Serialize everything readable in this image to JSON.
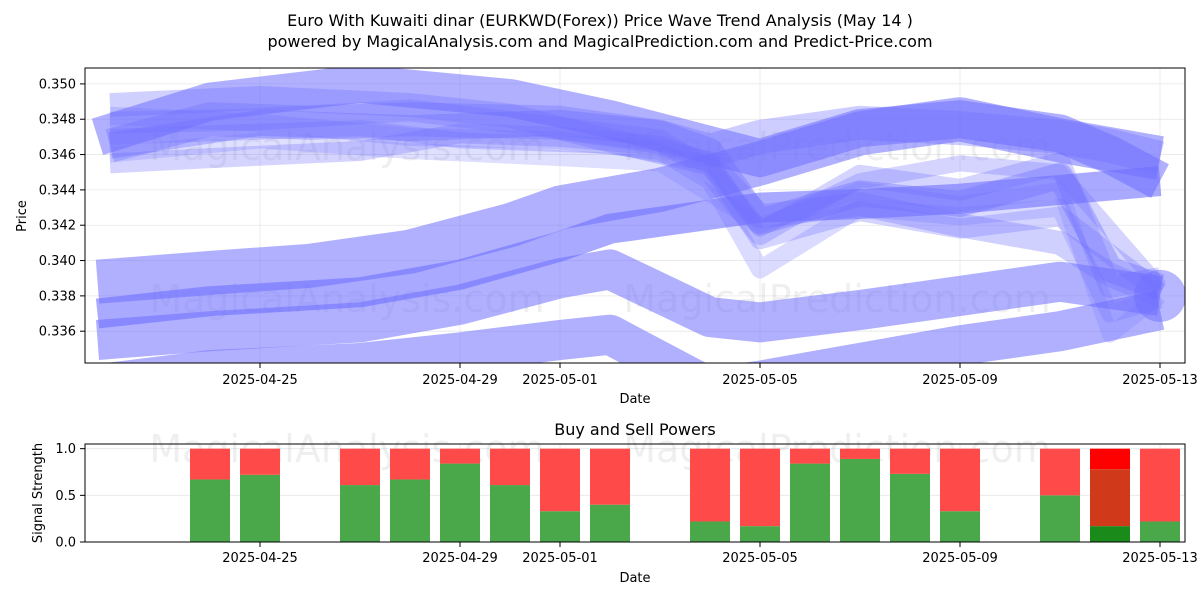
{
  "figure": {
    "title_line1": "Euro With Kuwaiti dinar (EURKWD(Forex)) Price Wave Trend Analysis (May 14 )",
    "title_line2": "powered by MagicalAnalysis.com and MagicalPrediction.com and Predict-Price.com",
    "watermarks": [
      "MagicalAnalysis.com",
      "MagicalPrediction.com"
    ]
  },
  "chart_data": [
    {
      "type": "line",
      "title": "",
      "xlabel": "Date",
      "ylabel": "Price",
      "grid": true,
      "xlim": [
        "2025-04-21T12:00",
        "2025-05-13T12:00"
      ],
      "ylim": [
        0.3342,
        0.3509
      ],
      "x_ticks": [
        "2025-04-25",
        "2025-04-29",
        "2025-05-01",
        "2025-05-05",
        "2025-05-09",
        "2025-05-13"
      ],
      "y_ticks": [
        0.336,
        0.338,
        0.34,
        0.342,
        0.344,
        0.346,
        0.348,
        0.35
      ],
      "band_color": "#6f6fff",
      "series": [
        {
          "x": [
            "2025-04-22",
            "2025-04-25",
            "2025-04-28",
            "2025-05-01",
            "2025-05-03",
            "2025-05-04",
            "2025-05-05",
            "2025-05-07",
            "2025-05-09",
            "2025-05-11",
            "2025-05-12",
            "2025-05-13"
          ],
          "y": [
            0.3465,
            0.3478,
            0.3475,
            0.3478,
            0.3472,
            0.3462,
            0.3422,
            0.3438,
            0.3432,
            0.3448,
            0.3395,
            0.3385
          ],
          "w": 26,
          "a": 0.38
        },
        {
          "x": [
            "2025-04-22",
            "2025-04-25",
            "2025-04-28",
            "2025-04-30",
            "2025-05-02",
            "2025-05-04",
            "2025-05-05",
            "2025-05-07",
            "2025-05-09",
            "2025-05-11",
            "2025-05-12",
            "2025-05-13"
          ],
          "y": [
            0.3488,
            0.3492,
            0.3488,
            0.3482,
            0.3468,
            0.3455,
            0.3425,
            0.3432,
            0.342,
            0.341,
            0.3392,
            0.338
          ],
          "w": 24,
          "a": 0.33
        },
        {
          "x": [
            "2025-04-22",
            "2025-04-25",
            "2025-04-28",
            "2025-05-01",
            "2025-05-03",
            "2025-05-04",
            "2025-05-05",
            "2025-05-07",
            "2025-05-09",
            "2025-05-11",
            "2025-05-12",
            "2025-05-13"
          ],
          "y": [
            0.3478,
            0.348,
            0.3485,
            0.3475,
            0.3468,
            0.345,
            0.3415,
            0.3448,
            0.344,
            0.3455,
            0.3385,
            0.339
          ],
          "w": 22,
          "a": 0.3
        },
        {
          "x": [
            "2025-04-22",
            "2025-04-24",
            "2025-04-27",
            "2025-04-29",
            "2025-05-01",
            "2025-05-03",
            "2025-05-04",
            "2025-05-05",
            "2025-05-07",
            "2025-05-09",
            "2025-05-11",
            "2025-05-13"
          ],
          "y": [
            0.3455,
            0.3458,
            0.3462,
            0.3472,
            0.347,
            0.3465,
            0.3455,
            0.3412,
            0.3428,
            0.3418,
            0.3425,
            0.3382
          ],
          "w": 20,
          "a": 0.3
        },
        {
          "x": [
            "2025-04-22",
            "2025-04-25",
            "2025-04-28",
            "2025-05-01",
            "2025-05-03",
            "2025-05-04",
            "2025-05-05",
            "2025-05-07",
            "2025-05-09",
            "2025-05-11",
            "2025-05-12",
            "2025-05-13"
          ],
          "y": [
            0.3482,
            0.3478,
            0.347,
            0.3468,
            0.3462,
            0.3445,
            0.3395,
            0.343,
            0.3425,
            0.343,
            0.337,
            0.3378
          ],
          "w": 18,
          "a": 0.25
        },
        {
          "x": [
            "2025-04-22",
            "2025-04-25",
            "2025-04-28",
            "2025-05-01",
            "2025-05-03",
            "2025-05-05",
            "2025-05-07",
            "2025-05-09",
            "2025-05-11",
            "2025-05-12",
            "2025-05-13"
          ],
          "y": [
            0.346,
            0.3468,
            0.3462,
            0.3458,
            0.3455,
            0.342,
            0.344,
            0.3432,
            0.344,
            0.3358,
            0.338
          ],
          "w": 16,
          "a": 0.22
        },
        {
          "x": [
            "2025-04-22",
            "2025-04-24",
            "2025-04-27",
            "2025-04-29",
            "2025-05-02",
            "2025-05-04",
            "2025-05-05",
            "2025-05-07",
            "2025-05-09",
            "2025-05-11",
            "2025-05-13"
          ],
          "y": [
            0.347,
            0.3472,
            0.3475,
            0.3468,
            0.3465,
            0.3455,
            0.3418,
            0.3445,
            0.3455,
            0.345,
            0.3385
          ],
          "w": 16,
          "a": 0.3
        },
        {
          "x": [
            "2025-04-21T18:00",
            "2025-04-24",
            "2025-04-27",
            "2025-04-30",
            "2025-05-02",
            "2025-05-05",
            "2025-05-07",
            "2025-05-09",
            "2025-05-11",
            "2025-05-12",
            "2025-05-13"
          ],
          "y": [
            0.347,
            0.349,
            0.35,
            0.3492,
            0.348,
            0.3458,
            0.3475,
            0.348,
            0.3472,
            0.346,
            0.3445
          ],
          "w": 38,
          "a": 0.55
        },
        {
          "x": [
            "2025-04-22",
            "2025-04-24",
            "2025-04-26",
            "2025-04-28",
            "2025-05-01",
            "2025-05-03",
            "2025-05-04",
            "2025-05-05",
            "2025-05-07",
            "2025-05-09",
            "2025-05-11",
            "2025-05-12",
            "2025-05-13"
          ],
          "y": [
            0.3465,
            0.348,
            0.3478,
            0.348,
            0.3478,
            0.347,
            0.3462,
            0.347,
            0.3478,
            0.3475,
            0.347,
            0.3465,
            0.3458
          ],
          "w": 34,
          "a": 0.35
        },
        {
          "x": [
            "2025-04-21T18:00",
            "2025-04-24",
            "2025-04-26",
            "2025-04-28",
            "2025-04-30",
            "2025-05-01",
            "2025-05-03",
            "2025-05-05",
            "2025-05-07",
            "2025-05-09",
            "2025-05-11",
            "2025-05-13"
          ],
          "y": [
            0.3388,
            0.3393,
            0.3397,
            0.3405,
            0.342,
            0.343,
            0.344,
            0.3455,
            0.3472,
            0.348,
            0.3468,
            0.3458
          ],
          "w": 44,
          "a": 0.55
        },
        {
          "x": [
            "2025-04-21T18:00",
            "2025-04-24",
            "2025-04-27",
            "2025-04-29",
            "2025-05-01",
            "2025-05-02",
            "2025-05-03",
            "2025-05-05",
            "2025-05-07",
            "2025-05-09",
            "2025-05-11",
            "2025-05-13"
          ],
          "y": [
            0.337,
            0.3377,
            0.3382,
            0.3392,
            0.3408,
            0.3418,
            0.3422,
            0.343,
            0.3432,
            0.3435,
            0.344,
            0.3445
          ],
          "w": 30,
          "a": 0.6
        },
        {
          "x": [
            "2025-04-21T18:00",
            "2025-04-24",
            "2025-04-27",
            "2025-04-29",
            "2025-05-01",
            "2025-05-02",
            "2025-05-04",
            "2025-05-05",
            "2025-05-07",
            "2025-05-09",
            "2025-05-11",
            "2025-05-13"
          ],
          "y": [
            0.3355,
            0.336,
            0.3365,
            0.3375,
            0.339,
            0.3395,
            0.3368,
            0.3365,
            0.3372,
            0.338,
            0.3388,
            0.338
          ],
          "w": 40,
          "a": 0.55
        },
        {
          "x": [
            "2025-04-21T18:00",
            "2025-04-24",
            "2025-04-27",
            "2025-04-29",
            "2025-05-01",
            "2025-05-02",
            "2025-05-04",
            "2025-05-05",
            "2025-05-07",
            "2025-05-09",
            "2025-05-11",
            "2025-05-13"
          ],
          "y": [
            0.333,
            0.3338,
            0.3342,
            0.3348,
            0.3355,
            0.3358,
            0.3328,
            0.3332,
            0.3342,
            0.3352,
            0.336,
            0.3372
          ],
          "w": 40,
          "a": 0.55
        }
      ],
      "end_dot": {
        "x": "2025-05-13",
        "y": 0.338,
        "w": 26,
        "a": 0.5
      }
    },
    {
      "type": "bar",
      "title": "Buy and Sell Powers",
      "xlabel": "Date",
      "ylabel": "Signal Strength",
      "grid": true,
      "xlim": [
        "2025-04-21T12:00",
        "2025-05-13T12:00"
      ],
      "ylim": [
        0,
        1.05
      ],
      "x_ticks": [
        "2025-04-25",
        "2025-04-29",
        "2025-05-01",
        "2025-05-05",
        "2025-05-09",
        "2025-05-13"
      ],
      "y_ticks": [
        "0.0",
        "0.5",
        "1.0"
      ],
      "buy_color": "#4aa84a",
      "sell_color": "#ff4a4a",
      "dates": [
        "2025-04-24",
        "2025-04-25",
        "2025-04-27",
        "2025-04-28",
        "2025-04-29",
        "2025-04-30",
        "2025-05-01",
        "2025-05-02",
        "2025-05-04",
        "2025-05-05",
        "2025-05-06",
        "2025-05-07",
        "2025-05-08",
        "2025-05-09",
        "2025-05-11",
        "2025-05-12",
        "2025-05-13"
      ],
      "buy": [
        0.67,
        0.72,
        0.61,
        0.67,
        0.84,
        0.61,
        0.33,
        0.4,
        0.22,
        0.17,
        0.84,
        0.89,
        0.73,
        0.33,
        0.5,
        0.17,
        0.22
      ],
      "sell": [
        0.33,
        0.28,
        0.39,
        0.33,
        0.16,
        0.39,
        0.67,
        0.6,
        0.78,
        0.83,
        0.16,
        0.11,
        0.27,
        0.67,
        0.5,
        0.83,
        0.78
      ],
      "highlight": {
        "date": "2025-05-12",
        "buy_color": "#1a8a1a",
        "sell_color": "#d03a1a",
        "top_color": "#ff0000",
        "top_from": 0.78
      }
    }
  ]
}
